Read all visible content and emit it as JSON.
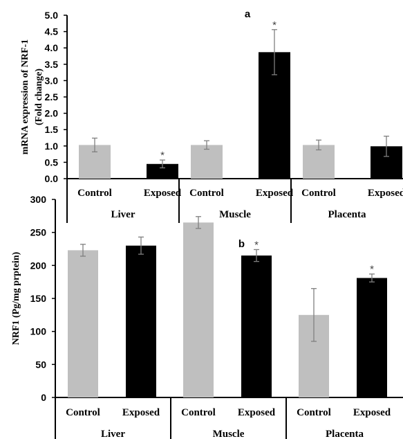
{
  "chart_data": [
    {
      "type": "bar",
      "title": "a",
      "ylabel_lines": [
        "mRNA expression of NRF-1",
        "(Fold change)"
      ],
      "ylim": [
        0,
        5
      ],
      "yticks": [
        "0.0",
        "0.5",
        "1.0",
        "1.5",
        "2.0",
        "2.5",
        "3.0",
        "3.5",
        "4.0",
        "4.5",
        "5.0"
      ],
      "groups": [
        "Liver",
        "Muscle",
        "Placenta"
      ],
      "categories": [
        "Control",
        "Exposed"
      ],
      "colors": {
        "Control": "#bfbfbf",
        "Exposed": "#000000"
      },
      "bars": [
        {
          "group": "Liver",
          "category": "Control",
          "value": 1.03,
          "err": 0.21,
          "sig": ""
        },
        {
          "group": "Liver",
          "category": "Exposed",
          "value": 0.45,
          "err": 0.12,
          "sig": "*"
        },
        {
          "group": "Muscle",
          "category": "Control",
          "value": 1.03,
          "err": 0.13,
          "sig": ""
        },
        {
          "group": "Muscle",
          "category": "Exposed",
          "value": 3.87,
          "err": 0.69,
          "sig": "*"
        },
        {
          "group": "Placenta",
          "category": "Control",
          "value": 1.03,
          "err": 0.15,
          "sig": ""
        },
        {
          "group": "Placenta",
          "category": "Exposed",
          "value": 0.99,
          "err": 0.31,
          "sig": ""
        }
      ]
    },
    {
      "type": "bar",
      "title": "b",
      "ylabel_lines": [
        "NRF1  (Pg/mg prptein)"
      ],
      "ylim": [
        0,
        300
      ],
      "yticks": [
        "0",
        "50",
        "100",
        "150",
        "200",
        "250",
        "300"
      ],
      "groups": [
        "Liver",
        "Muscle",
        "Placenta"
      ],
      "categories": [
        "Control",
        "Exposed"
      ],
      "colors": {
        "Control": "#bfbfbf",
        "Exposed": "#000000"
      },
      "bars": [
        {
          "group": "Liver",
          "category": "Control",
          "value": 223,
          "err": 9,
          "sig": ""
        },
        {
          "group": "Liver",
          "category": "Exposed",
          "value": 230,
          "err": 13,
          "sig": ""
        },
        {
          "group": "Muscle",
          "category": "Control",
          "value": 265,
          "err": 9,
          "sig": ""
        },
        {
          "group": "Muscle",
          "category": "Exposed",
          "value": 215,
          "err": 9,
          "sig": "*"
        },
        {
          "group": "Placenta",
          "category": "Control",
          "value": 125,
          "err": 40,
          "sig": ""
        },
        {
          "group": "Placenta",
          "category": "Exposed",
          "value": 181,
          "err": 6,
          "sig": "*"
        }
      ]
    }
  ]
}
